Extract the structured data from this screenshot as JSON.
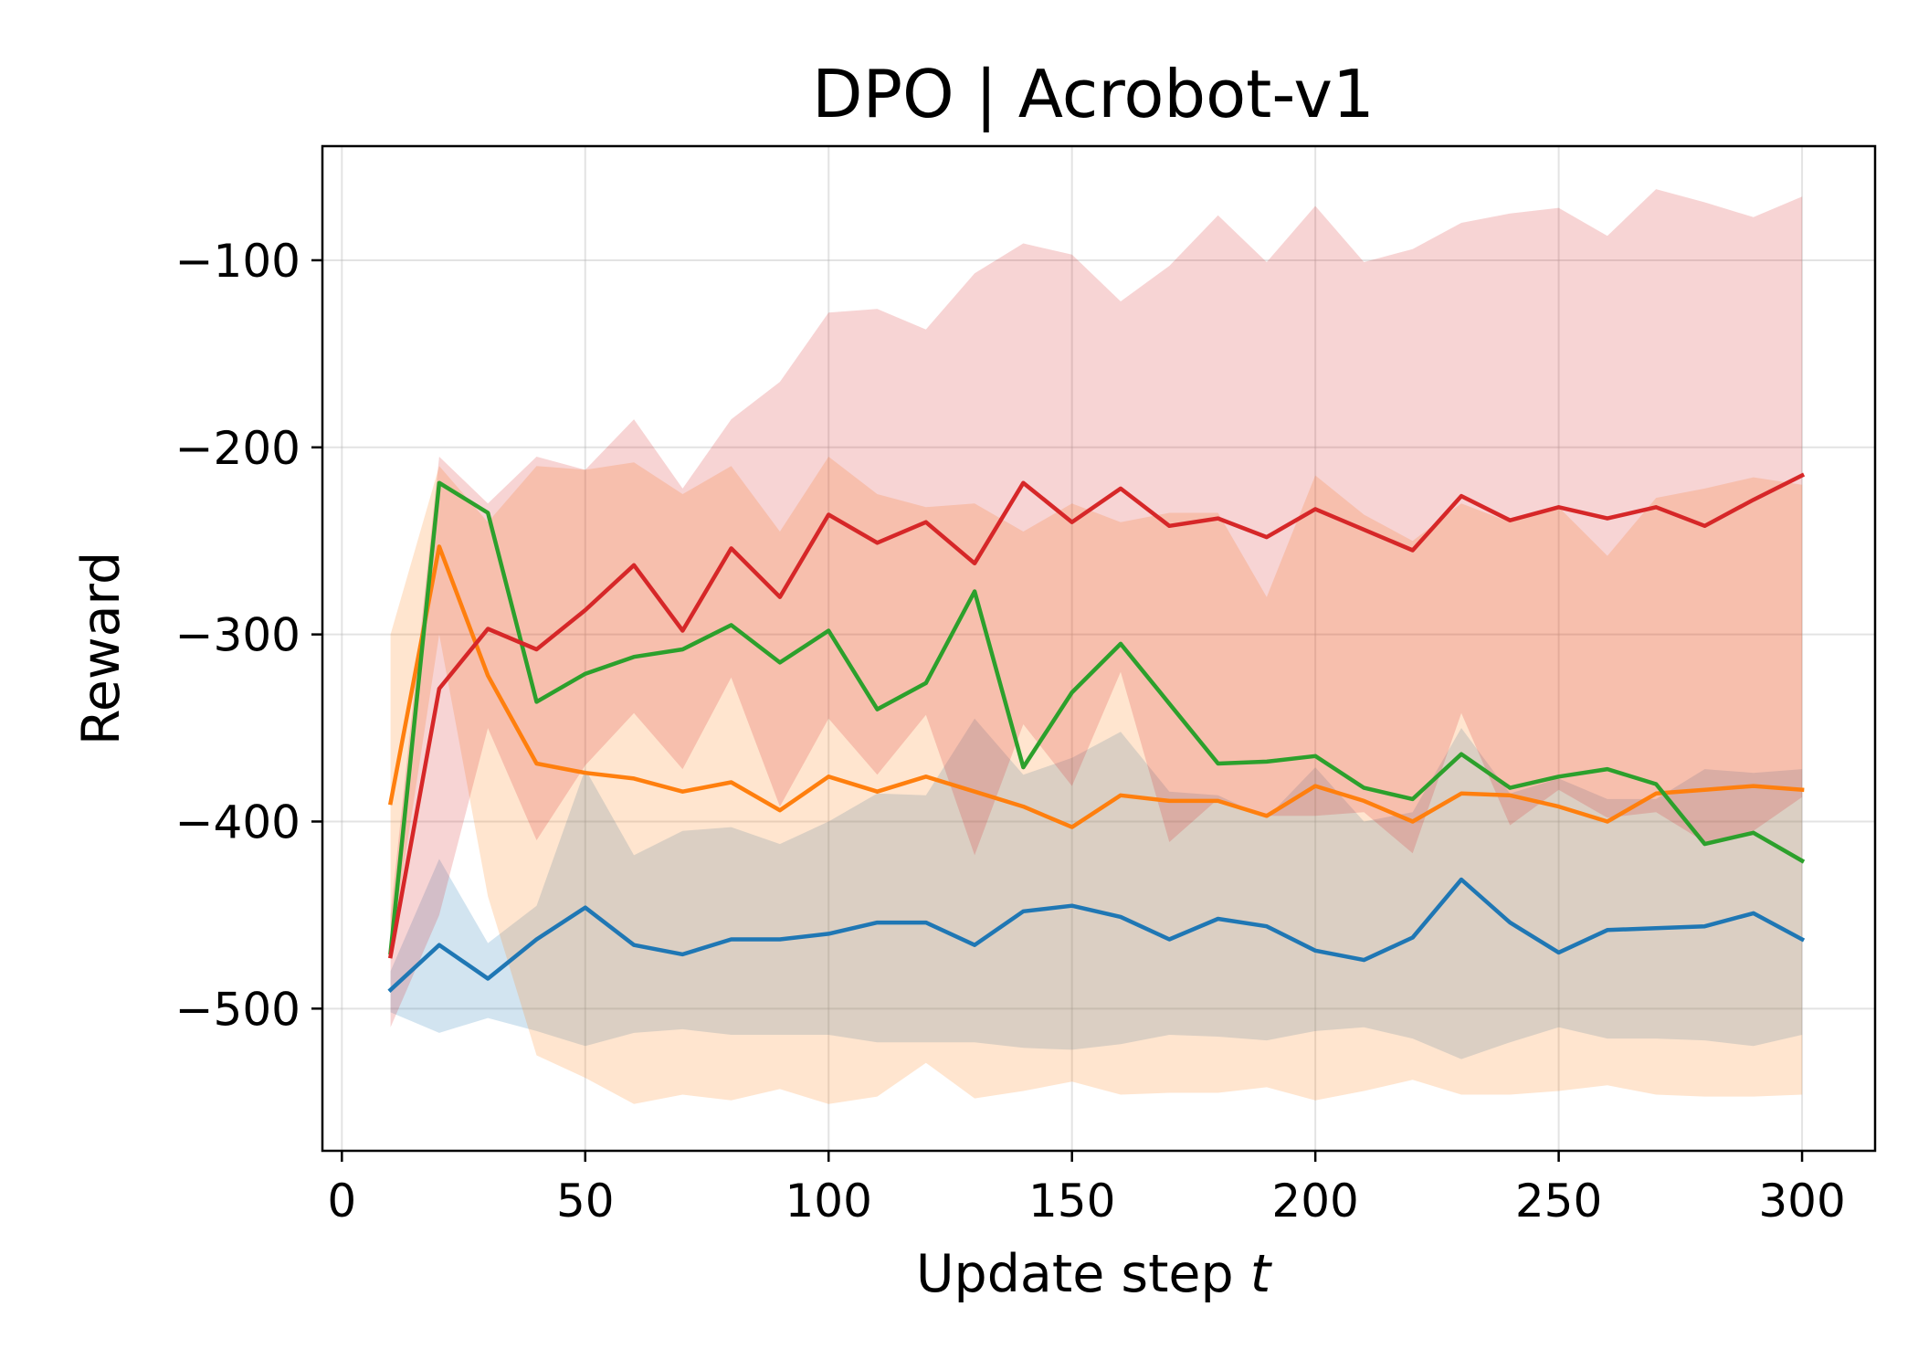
{
  "chart_data": {
    "type": "line",
    "title": "DPO | Acrobot-v1",
    "xlabel": "Update step",
    "xlabel_var": "t",
    "ylabel": "Reward",
    "xlim": [
      -4,
      315
    ],
    "ylim": [
      -576,
      -39
    ],
    "xticks": [
      0,
      50,
      100,
      150,
      200,
      250,
      300
    ],
    "yticks": [
      -500,
      -400,
      -300,
      -200,
      -100
    ],
    "ytick_labels": [
      "−500",
      "−400",
      "−300",
      "−200",
      "−100"
    ],
    "grid": true,
    "x": [
      10,
      20,
      30,
      40,
      50,
      60,
      70,
      80,
      90,
      100,
      110,
      120,
      130,
      140,
      150,
      160,
      170,
      180,
      190,
      200,
      210,
      220,
      230,
      240,
      250,
      260,
      270,
      280,
      290,
      300
    ],
    "series": [
      {
        "color": "#1f77b4",
        "values": [
          -490,
          -466,
          -484,
          -463,
          -446,
          -466,
          -471,
          -463,
          -463,
          -460,
          -454,
          -454,
          -466,
          -448,
          -445,
          -451,
          -463,
          -452,
          -456,
          -469,
          -474,
          -462,
          -431,
          -454,
          -470,
          -458,
          -457,
          -456,
          -449,
          -463
        ],
        "upper": [
          -480,
          -420,
          -465,
          -445,
          -372,
          -418,
          -405,
          -403,
          -412,
          -400,
          -385,
          -386,
          -345,
          -375,
          -366,
          -352,
          -384,
          -386,
          -398,
          -371,
          -400,
          -395,
          -350,
          -385,
          -377,
          -388,
          -388,
          -372,
          -374,
          -372
        ],
        "lower": [
          -502,
          -513,
          -505,
          -512,
          -520,
          -513,
          -511,
          -514,
          -514,
          -514,
          -518,
          -518,
          -518,
          -521,
          -522,
          -519,
          -514,
          -515,
          -517,
          -512,
          -510,
          -516,
          -527,
          -518,
          -510,
          -516,
          -516,
          -517,
          -520,
          -514
        ]
      },
      {
        "color": "#ff7f0e",
        "values": [
          -390,
          -253,
          -322,
          -369,
          -374,
          -377,
          -384,
          -379,
          -394,
          -376,
          -384,
          -376,
          -384,
          -392,
          -403,
          -386,
          -389,
          -389,
          -397,
          -381,
          -389,
          -400,
          -385,
          -386,
          -392,
          -400,
          -385,
          -383,
          -381,
          -383
        ],
        "upper": [
          -300,
          -210,
          -240,
          -210,
          -212,
          -208,
          -225,
          -210,
          -245,
          -205,
          -225,
          -232,
          -230,
          -245,
          -230,
          -240,
          -235,
          -235,
          -280,
          -215,
          -236,
          -250,
          -230,
          -240,
          -232,
          -258,
          -227,
          -222,
          -216,
          -220
        ],
        "lower": [
          -470,
          -300,
          -440,
          -525,
          -537,
          -551,
          -546,
          -549,
          -543,
          -551,
          -547,
          -529,
          -548,
          -544,
          -539,
          -546,
          -545,
          -545,
          -542,
          -549,
          -544,
          -538,
          -546,
          -546,
          -544,
          -541,
          -546,
          -547,
          -547,
          -546
        ]
      },
      {
        "color": "#2ca02c",
        "values": [
          -470,
          -219,
          -235,
          -336,
          -321,
          -312,
          -308,
          -295,
          -315,
          -298,
          -340,
          -326,
          -277,
          -371,
          -331,
          -305,
          -337,
          -369,
          -368,
          -365,
          -382,
          -388,
          -364,
          -382,
          -376,
          -372,
          -380,
          -412,
          -406,
          -421
        ]
      },
      {
        "color": "#d62728",
        "values": [
          -472,
          -329,
          -297,
          -308,
          -287,
          -263,
          -298,
          -254,
          -280,
          -236,
          -251,
          -240,
          -262,
          -219,
          -240,
          -222,
          -242,
          -238,
          -248,
          -233,
          -244,
          -255,
          -226,
          -239,
          -232,
          -238,
          -232,
          -242,
          -228,
          -215
        ],
        "upper": [
          -450,
          -205,
          -230,
          -205,
          -212,
          -185,
          -222,
          -185,
          -165,
          -128,
          -126,
          -137,
          -107,
          -91,
          -97,
          -122,
          -103,
          -76,
          -101,
          -71,
          -101,
          -94,
          -80,
          -75,
          -72,
          -87,
          -62,
          -69,
          -77,
          -66
        ],
        "lower": [
          -510,
          -450,
          -350,
          -410,
          -370,
          -342,
          -372,
          -323,
          -392,
          -345,
          -375,
          -343,
          -418,
          -348,
          -381,
          -320,
          -411,
          -388,
          -397,
          -397,
          -395,
          -417,
          -342,
          -402,
          -383,
          -398,
          -395,
          -411,
          -405,
          -387
        ]
      }
    ]
  }
}
